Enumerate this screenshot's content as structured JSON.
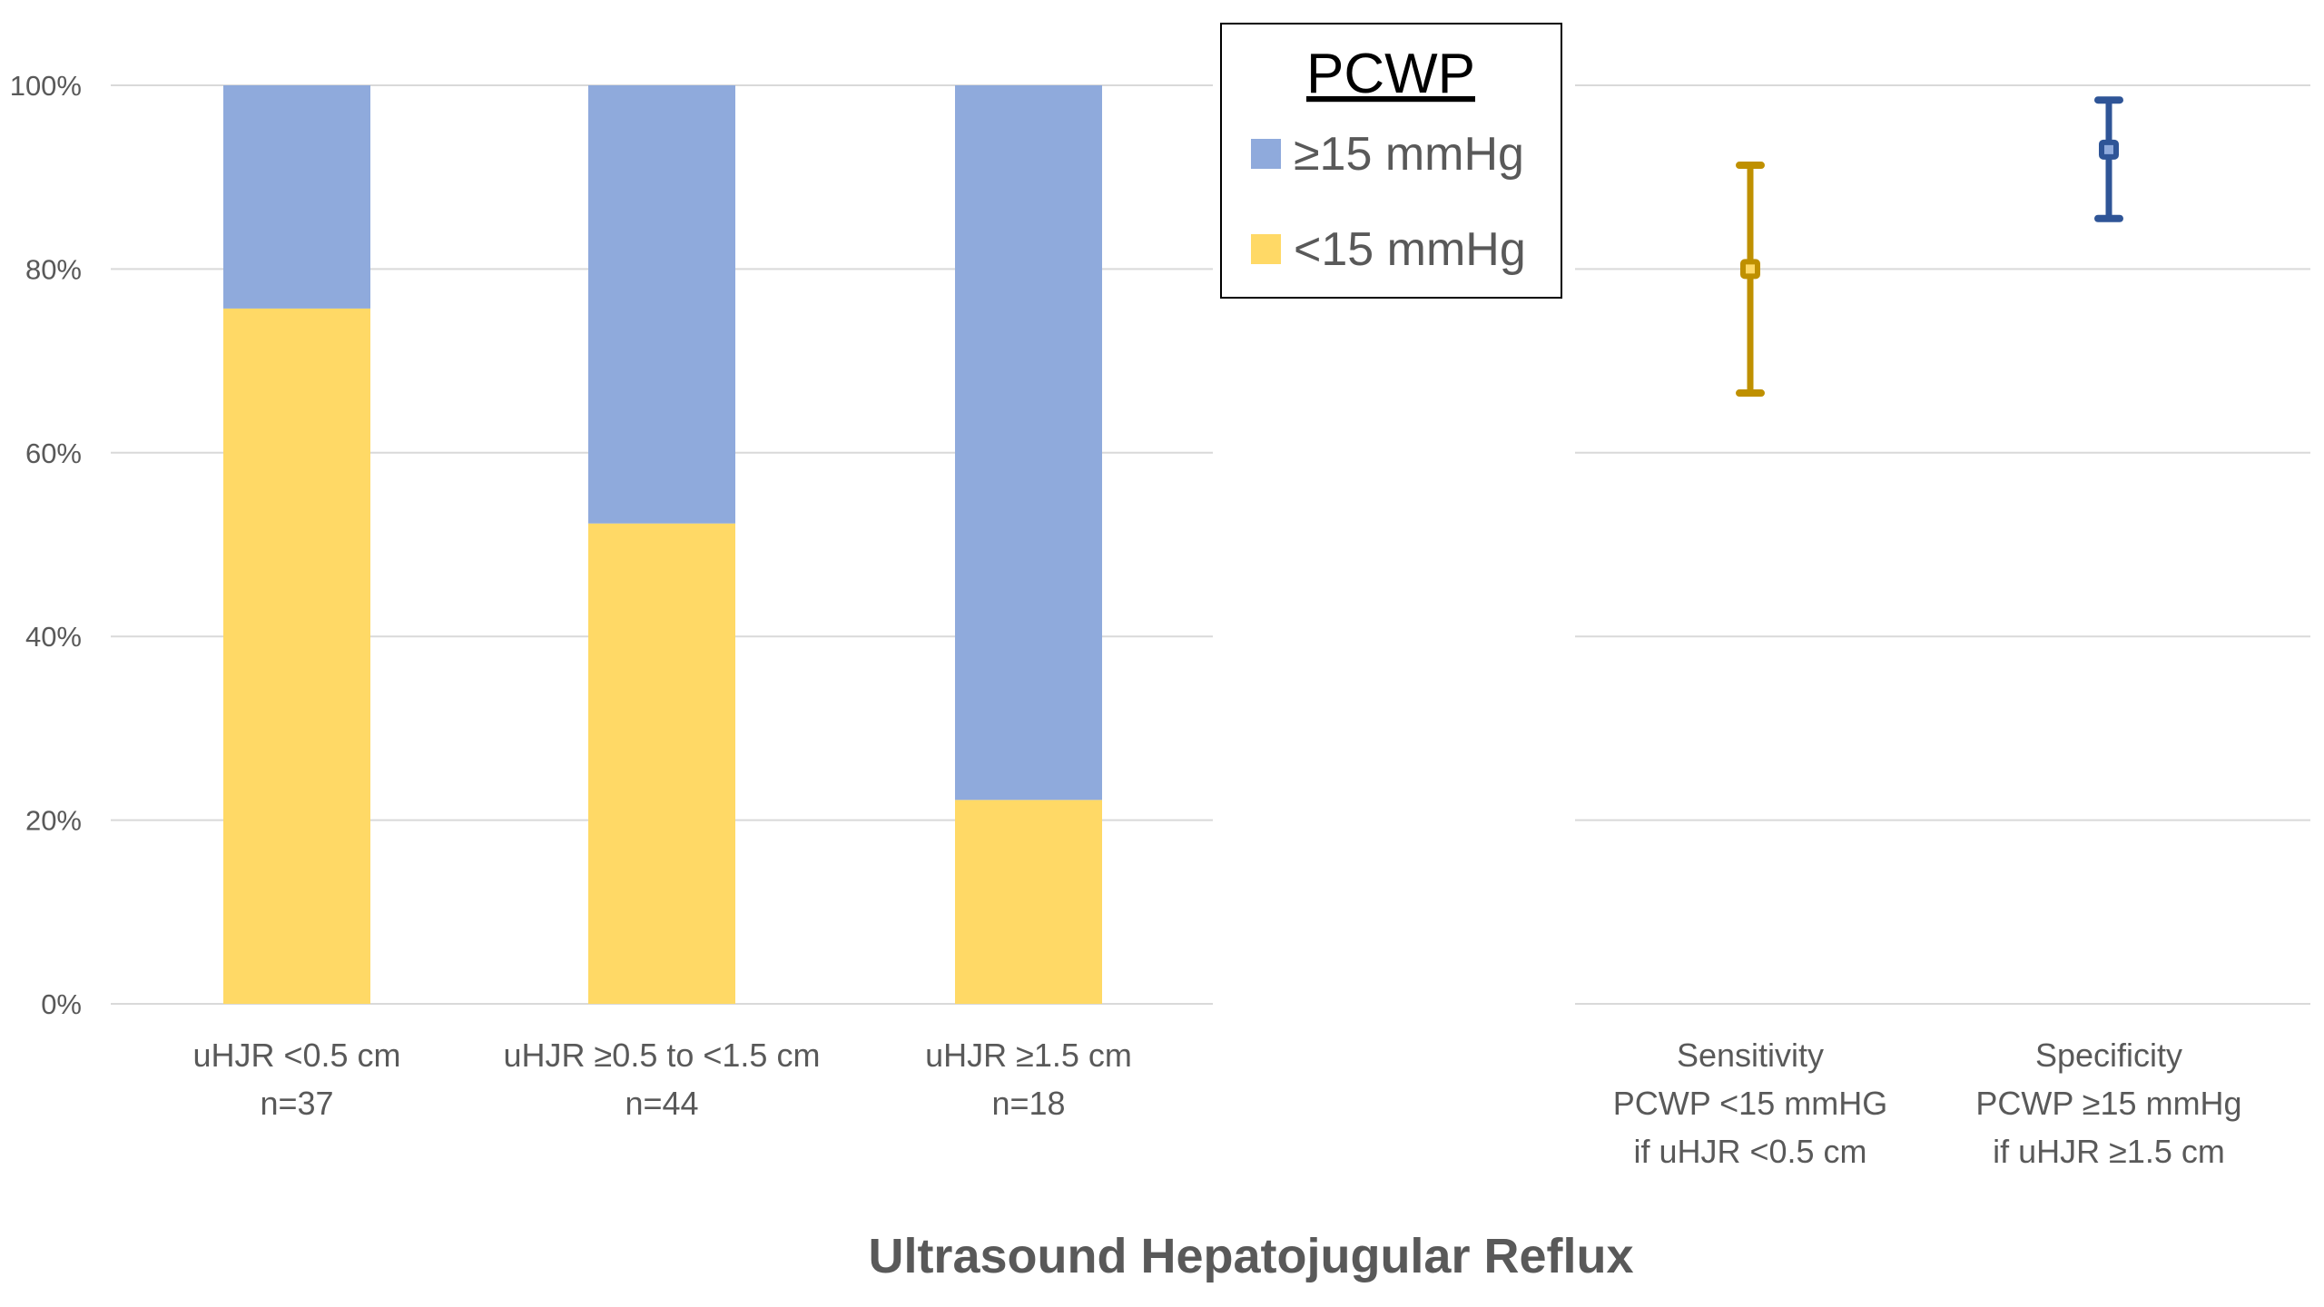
{
  "chart_data": [
    {
      "type": "bar",
      "stacked": true,
      "percent": true,
      "categories": [
        {
          "label": "uHJR <0.5 cm",
          "n": "n=37"
        },
        {
          "label": "uHJR ≥0.5 to <1.5 cm",
          "n": "n=44"
        },
        {
          "label": "uHJR ≥1.5 cm",
          "n": "n=18"
        }
      ],
      "series": [
        {
          "name": "<15 mmHg",
          "color": "#FFD966",
          "values": [
            75.7,
            52.3,
            22.2
          ]
        },
        {
          "name": "≥15 mmHg",
          "color": "#8FAADC",
          "values": [
            24.3,
            47.7,
            77.8
          ]
        }
      ],
      "ylim": [
        0,
        100
      ],
      "yticks": [
        "0%",
        "20%",
        "40%",
        "60%",
        "80%",
        "100%"
      ],
      "grid": true,
      "legend": {
        "title": "PCWP",
        "placement": "top-center",
        "items": [
          "≥15 mmHg",
          "<15 mmHg"
        ]
      }
    },
    {
      "type": "scatter",
      "error_bars": true,
      "categories": [
        {
          "lines": [
            "Sensitivity",
            "PCWP <15 mmHG",
            "if uHJR <0.5 cm"
          ],
          "value": 80.0,
          "lower": 66.5,
          "upper": 91.3,
          "color": "#BF9000",
          "fill": "#FFD966"
        },
        {
          "lines": [
            "Specificity",
            "PCWP ≥15 mmHg",
            "if uHJR ≥1.5 cm"
          ],
          "value": 93.0,
          "lower": 85.5,
          "upper": 98.4,
          "color": "#2F5597",
          "fill": "#8FAADC"
        }
      ],
      "ylim": [
        0,
        100
      ],
      "grid": true
    }
  ],
  "xlabel": "Ultrasound Hepatojugular Reflux"
}
